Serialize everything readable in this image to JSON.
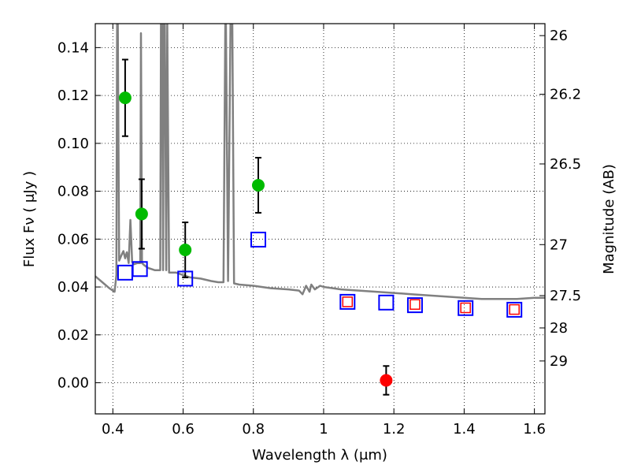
{
  "chart_data": {
    "type": "scatter",
    "xlabel": "Wavelength  λ (μm)",
    "ylabel": "Flux  Fν  ( μJy )",
    "ylabel_right": "Magnitude (AB)",
    "xlim": [
      0.35,
      1.63
    ],
    "ylim": [
      -0.013,
      0.15
    ],
    "x_ticks": [
      0.4,
      0.6,
      0.8,
      1.0,
      1.2,
      1.4,
      1.6
    ],
    "x_tick_labels": [
      "0.4",
      "0.6",
      "0.8",
      "1",
      "1.2",
      "1.4",
      "1.6"
    ],
    "y_ticks": [
      0.0,
      0.02,
      0.04,
      0.06,
      0.08,
      0.1,
      0.12,
      0.14
    ],
    "y_tick_labels": [
      "0.00",
      "0.02",
      "0.04",
      "0.06",
      "0.08",
      "0.10",
      "0.12",
      "0.14"
    ],
    "mag_ticks": [
      {
        "label": "26",
        "flux": 0.145
      },
      {
        "label": "26.2",
        "flux": 0.1205
      },
      {
        "label": "26.5",
        "flux": 0.0914
      },
      {
        "label": "27",
        "flux": 0.0577
      },
      {
        "label": "27.5",
        "flux": 0.0364
      },
      {
        "label": "28",
        "flux": 0.0229
      },
      {
        "label": "29",
        "flux": 0.0091
      }
    ],
    "grid": true,
    "series": [
      {
        "name": "Observed detections",
        "color": "#00bb00",
        "points": [
          {
            "x": 0.435,
            "y": 0.119,
            "err": 0.016
          },
          {
            "x": 0.482,
            "y": 0.0705,
            "err": 0.0145
          },
          {
            "x": 0.606,
            "y": 0.0555,
            "err": 0.0115
          },
          {
            "x": 0.814,
            "y": 0.0825,
            "err": 0.0115
          }
        ]
      },
      {
        "name": "Observed non-detection",
        "color": "#ff0000",
        "points": [
          {
            "x": 1.178,
            "y": 0.001,
            "err": 0.006
          }
        ]
      },
      {
        "name": "Model photometry (blue squares)",
        "color": "#0000ff",
        "points": [
          {
            "x": 0.435,
            "y": 0.046
          },
          {
            "x": 0.477,
            "y": 0.0475
          },
          {
            "x": 0.606,
            "y": 0.0435
          },
          {
            "x": 0.814,
            "y": 0.0598
          },
          {
            "x": 1.068,
            "y": 0.0338
          },
          {
            "x": 1.178,
            "y": 0.0335
          },
          {
            "x": 1.26,
            "y": 0.0324
          },
          {
            "x": 1.404,
            "y": 0.0312
          },
          {
            "x": 1.543,
            "y": 0.0305
          }
        ]
      },
      {
        "name": "Model photometry (red squares)",
        "color": "#ff0000",
        "points": [
          {
            "x": 1.068,
            "y": 0.0338
          },
          {
            "x": 1.26,
            "y": 0.0327
          },
          {
            "x": 1.404,
            "y": 0.0313
          },
          {
            "x": 1.543,
            "y": 0.0306
          }
        ]
      }
    ],
    "spectrum": {
      "name": "Template spectrum",
      "color": "#808080",
      "x": [
        0.35,
        0.37,
        0.39,
        0.405,
        0.41,
        0.412,
        0.414,
        0.418,
        0.425,
        0.43,
        0.435,
        0.44,
        0.445,
        0.45,
        0.455,
        0.46,
        0.47,
        0.478,
        0.48,
        0.483,
        0.49,
        0.5,
        0.52,
        0.535,
        0.537,
        0.54,
        0.543,
        0.545,
        0.548,
        0.552,
        0.555,
        0.56,
        0.58,
        0.6,
        0.62,
        0.65,
        0.68,
        0.7,
        0.715,
        0.72,
        0.722,
        0.728,
        0.735,
        0.74,
        0.745,
        0.76,
        0.8,
        0.85,
        0.9,
        0.93,
        0.94,
        0.95,
        0.96,
        0.965,
        0.975,
        0.99,
        1.0,
        1.05,
        1.1,
        1.15,
        1.2,
        1.25,
        1.3,
        1.35,
        1.4,
        1.45,
        1.5,
        1.55,
        1.6,
        1.63
      ],
      "y": [
        0.0445,
        0.042,
        0.0395,
        0.038,
        0.045,
        0.15,
        0.15,
        0.051,
        0.0535,
        0.055,
        0.052,
        0.0545,
        0.05,
        0.068,
        0.0505,
        0.0495,
        0.05,
        0.05,
        0.146,
        0.05,
        0.049,
        0.048,
        0.047,
        0.047,
        0.15,
        0.15,
        0.047,
        0.15,
        0.15,
        0.047,
        0.15,
        0.046,
        0.046,
        0.045,
        0.044,
        0.0435,
        0.0425,
        0.042,
        0.042,
        0.15,
        0.15,
        0.0425,
        0.15,
        0.15,
        0.0415,
        0.041,
        0.0405,
        0.0395,
        0.039,
        0.0385,
        0.037,
        0.0405,
        0.038,
        0.041,
        0.039,
        0.0405,
        0.04,
        0.039,
        0.0385,
        0.038,
        0.0375,
        0.037,
        0.0365,
        0.036,
        0.0355,
        0.035,
        0.035,
        0.035,
        0.0355,
        0.0355
      ]
    }
  }
}
